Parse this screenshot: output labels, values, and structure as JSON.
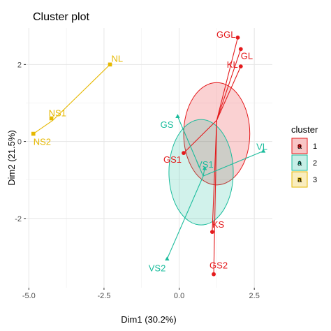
{
  "chart_data": {
    "type": "scatter",
    "title": "Cluster plot",
    "xlabel": "Dim1 (30.2%)",
    "ylabel": "Dim2 (21.5%)",
    "xlim": [
      -5.1,
      3.1
    ],
    "ylim": [
      -3.8,
      2.95
    ],
    "x_ticks": [
      {
        "value": -5.0,
        "label": "-5.0"
      },
      {
        "value": -2.5,
        "label": "-2.5"
      },
      {
        "value": 0.0,
        "label": "0.0"
      },
      {
        "value": 2.5,
        "label": "2.5"
      }
    ],
    "y_ticks": [
      {
        "value": -2,
        "label": "-2"
      },
      {
        "value": 0,
        "label": "0"
      },
      {
        "value": 2,
        "label": "2"
      }
    ],
    "grid": true,
    "legend": {
      "title": "cluster",
      "placement": "right",
      "key_glyph": "a",
      "entries": [
        {
          "label": "1",
          "color": "#E41A1C"
        },
        {
          "label": "2",
          "color": "#1ABC9C"
        },
        {
          "label": "3",
          "color": "#E6B800"
        }
      ]
    },
    "clusters": [
      {
        "name": "1",
        "color": "#E41A1C",
        "shape": "circle",
        "center": [
          1.25,
          0.55
        ],
        "points": [
          {
            "label": "GGL",
            "x": 1.95,
            "y": 2.7,
            "label_dx": -3,
            "label_dy": 0,
            "anchor": "end"
          },
          {
            "label": "GL",
            "x": 2.05,
            "y": 2.4,
            "label_dx": 0,
            "label_dy": 14,
            "anchor": "start"
          },
          {
            "label": "KL",
            "x": 2.05,
            "y": 1.95,
            "label_dx": -20,
            "label_dy": 2,
            "anchor": "start"
          },
          {
            "label": "GS1",
            "x": 0.15,
            "y": -0.3,
            "label_dx": -3,
            "label_dy": 14,
            "anchor": "end"
          },
          {
            "label": "KS",
            "x": 1.1,
            "y": -2.35,
            "label_dx": 0,
            "label_dy": -6,
            "anchor": "start"
          },
          {
            "label": "GS2",
            "x": 1.15,
            "y": -3.45,
            "label_dx": -6,
            "label_dy": -8,
            "anchor": "start"
          }
        ],
        "ellipse": {
          "cx": 1.25,
          "cy": 0.2,
          "rx": 1.1,
          "ry": 1.33
        }
      },
      {
        "name": "2",
        "color": "#1ABC9C",
        "shape": "triangle",
        "center": [
          0.8,
          -0.9
        ],
        "points": [
          {
            "label": "GS",
            "x": -0.05,
            "y": 0.65,
            "label_dx": -6,
            "label_dy": 16,
            "anchor": "end"
          },
          {
            "label": "VL",
            "x": 2.8,
            "y": -0.25,
            "label_dx": -10,
            "label_dy": -2,
            "anchor": "start"
          },
          {
            "label": "VS1",
            "x": 0.85,
            "y": -0.7,
            "label_dx": -12,
            "label_dy": -1,
            "anchor": "start"
          },
          {
            "label": "VS2",
            "x": -0.4,
            "y": -3.05,
            "label_dx": -2,
            "label_dy": 18,
            "anchor": "end"
          }
        ],
        "ellipse": {
          "cx": 0.73,
          "cy": -0.8,
          "rx": 1.07,
          "ry": 1.37
        }
      },
      {
        "name": "3",
        "color": "#E6B800",
        "shape": "square",
        "center": [
          -4.2,
          0.55
        ],
        "points": [
          {
            "label": "NL",
            "x": -2.3,
            "y": 2.0,
            "label_dx": 2,
            "label_dy": -4,
            "anchor": "start"
          },
          {
            "label": "NS1",
            "x": -4.25,
            "y": 0.6,
            "label_dx": -4,
            "label_dy": -3,
            "anchor": "start"
          },
          {
            "label": "NS2",
            "x": -4.85,
            "y": 0.2,
            "label_dx": 0,
            "label_dy": 16,
            "anchor": "start"
          }
        ],
        "ellipse": null
      }
    ]
  }
}
